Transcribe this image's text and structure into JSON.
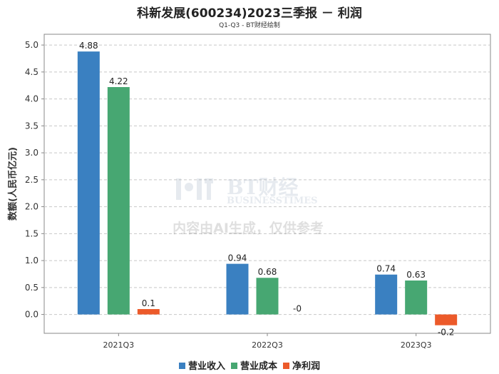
{
  "chart_data": {
    "type": "bar",
    "title": "科新发展(600234)2023三季报 － 利润",
    "subtitle": "Q1-Q3 - BT财经绘制",
    "ylabel": "数额(人民币亿元)",
    "xlabel": "",
    "categories": [
      "2021Q3",
      "2022Q3",
      "2023Q3"
    ],
    "ylim": [
      -0.35,
      5.2
    ],
    "yticks": [
      "5.0",
      "4.5",
      "4.0",
      "3.5",
      "3.0",
      "2.5",
      "2.0",
      "1.5",
      "1.0",
      "0.5",
      "0.0"
    ],
    "grid": true,
    "legend_position": "bottom",
    "series": [
      {
        "name": "营业收入",
        "color": "#3a80c1",
        "values": [
          4.88,
          0.94,
          0.74
        ],
        "labels": [
          "4.88",
          "0.94",
          "0.74"
        ]
      },
      {
        "name": "营业成本",
        "color": "#47a772",
        "values": [
          4.22,
          0.68,
          0.63
        ],
        "labels": [
          "4.22",
          "0.68",
          "0.63"
        ]
      },
      {
        "name": "净利润",
        "color": "#ec5a2a",
        "values": [
          0.1,
          -0.0,
          -0.2
        ],
        "labels": [
          "0.1",
          "-0",
          "-0.2"
        ]
      }
    ],
    "watermark": {
      "brand": "BT财经",
      "brand_en": "BUSINESSTIMES",
      "notice": "内容由AI生成，仅供参考"
    }
  }
}
